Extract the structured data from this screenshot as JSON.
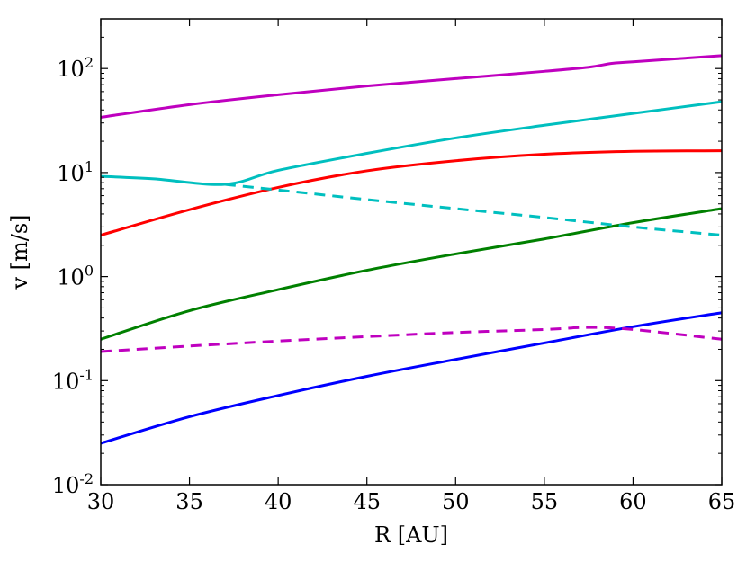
{
  "chart_data": {
    "type": "line",
    "title": "",
    "xlabel": "R [AU]",
    "ylabel": "v [m/s]",
    "xlim": [
      30,
      65
    ],
    "ylim": [
      0.01,
      300
    ],
    "yscale": "log",
    "grid": false,
    "legend": "none",
    "x_ticks": [
      30,
      35,
      40,
      45,
      50,
      55,
      60,
      65
    ],
    "y_ticks": [
      {
        "value": 0.01,
        "base": "10",
        "exp": "-2"
      },
      {
        "value": 0.1,
        "base": "10",
        "exp": "-1"
      },
      {
        "value": 1,
        "base": "10",
        "exp": "0"
      },
      {
        "value": 10,
        "base": "10",
        "exp": "1"
      },
      {
        "value": 100,
        "base": "10",
        "exp": "2"
      }
    ],
    "series": [
      {
        "color": "#bf00bf",
        "style": "solid",
        "x": [
          30,
          35,
          40,
          45,
          50,
          55,
          57.5,
          58.8,
          60,
          65
        ],
        "y": [
          34,
          45,
          56,
          68,
          80,
          94,
          103,
          112,
          116,
          133
        ]
      },
      {
        "color": "#00bfbf",
        "style": "solid",
        "x": [
          30,
          33,
          37,
          40,
          45,
          50,
          55,
          60,
          65
        ],
        "y": [
          9.2,
          8.7,
          7.7,
          10.5,
          15.3,
          21.5,
          28.5,
          37,
          48
        ]
      },
      {
        "color": "#ff0000",
        "style": "solid",
        "x": [
          30,
          35,
          40,
          45,
          50,
          55,
          60,
          65
        ],
        "y": [
          2.5,
          4.4,
          7.2,
          10.4,
          13,
          15,
          16,
          16.2
        ]
      },
      {
        "color": "#008000",
        "style": "solid",
        "x": [
          30,
          35,
          40,
          45,
          50,
          55,
          60,
          65
        ],
        "y": [
          0.25,
          0.47,
          0.75,
          1.15,
          1.65,
          2.3,
          3.3,
          4.5
        ]
      },
      {
        "color": "#0000ff",
        "style": "solid",
        "x": [
          30,
          35,
          40,
          45,
          50,
          55,
          60,
          65
        ],
        "y": [
          0.025,
          0.045,
          0.072,
          0.11,
          0.16,
          0.23,
          0.33,
          0.45
        ]
      },
      {
        "color": "#00bfbf",
        "style": "dashed",
        "x": [
          37,
          40,
          45,
          50,
          55,
          60,
          65
        ],
        "y": [
          7.7,
          6.8,
          5.5,
          4.5,
          3.7,
          3.0,
          2.5
        ]
      },
      {
        "color": "#bf00bf",
        "style": "dashed",
        "x": [
          30,
          35,
          40,
          45,
          50,
          55,
          57.5,
          60,
          65
        ],
        "y": [
          0.19,
          0.215,
          0.24,
          0.265,
          0.29,
          0.31,
          0.325,
          0.31,
          0.25
        ]
      }
    ]
  }
}
